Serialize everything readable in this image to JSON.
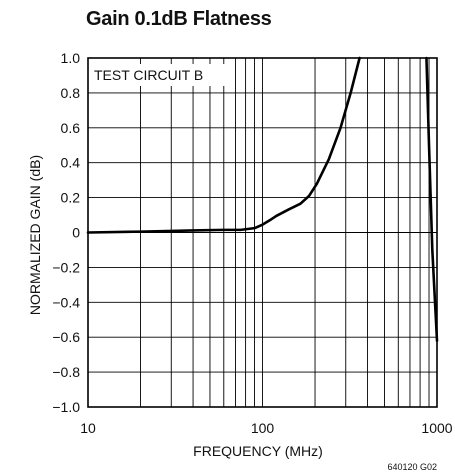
{
  "chart_data": {
    "type": "line",
    "title": "Gain 0.1dB Flatness",
    "xlabel": "FREQUENCY (MHz)",
    "ylabel": "NORMALIZED GAIN (dB)",
    "x_scale": "log",
    "xlim": [
      10,
      1000
    ],
    "ylim": [
      -1.0,
      1.0
    ],
    "x_ticks": [
      10,
      100,
      1000
    ],
    "x_tick_labels": [
      "10",
      "100",
      "1000"
    ],
    "y_ticks": [
      1.0,
      0.8,
      0.6,
      0.4,
      0.2,
      0,
      -0.2,
      -0.4,
      -0.6,
      -0.8,
      -1.0
    ],
    "y_tick_labels": [
      "1.0",
      "0.8",
      "0.6",
      "0.4",
      "0.2",
      "0",
      "−0.2",
      "−0.4",
      "−0.6",
      "−0.8",
      "−1.0"
    ],
    "grid": true,
    "annotation": "TEST CIRCUIT B",
    "figure_code": "640120 G02",
    "series": [
      {
        "color": "#000000",
        "points": [
          [
            10,
            0.0
          ],
          [
            20,
            0.005
          ],
          [
            40,
            0.012
          ],
          [
            60,
            0.015
          ],
          [
            75,
            0.015
          ],
          [
            90,
            0.025
          ],
          [
            100,
            0.045
          ],
          [
            110,
            0.07
          ],
          [
            120,
            0.095
          ],
          [
            140,
            0.13
          ],
          [
            165,
            0.165
          ],
          [
            185,
            0.21
          ],
          [
            205,
            0.28
          ],
          [
            240,
            0.42
          ],
          [
            280,
            0.6
          ],
          [
            320,
            0.8
          ],
          [
            360,
            1.0
          ]
        ]
      },
      {
        "color": "#000000",
        "points": [
          [
            870,
            1.0
          ],
          [
            900,
            0.5
          ],
          [
            940,
            -0.1
          ],
          [
            980,
            -0.45
          ],
          [
            1000,
            -0.62
          ]
        ]
      }
    ]
  }
}
